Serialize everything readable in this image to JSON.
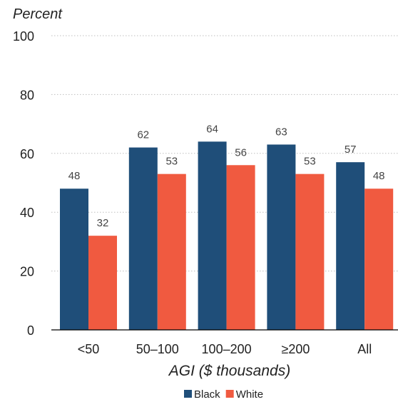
{
  "chart_data": {
    "type": "bar",
    "title": "",
    "ylabel": "Percent",
    "xlabel": "AGI ($ thousands)",
    "ylim": [
      0,
      100
    ],
    "yticks": [
      0,
      20,
      40,
      60,
      80,
      100
    ],
    "grid": true,
    "legend_position": "bottom",
    "categories": [
      "<50",
      "50–100",
      "100–200",
      "≥200",
      "All"
    ],
    "series": [
      {
        "name": "Black",
        "color": "#1f4e79",
        "values": [
          48,
          62,
          64,
          63,
          57
        ]
      },
      {
        "name": "White",
        "color": "#f05a40",
        "values": [
          32,
          53,
          56,
          53,
          48
        ]
      }
    ]
  }
}
